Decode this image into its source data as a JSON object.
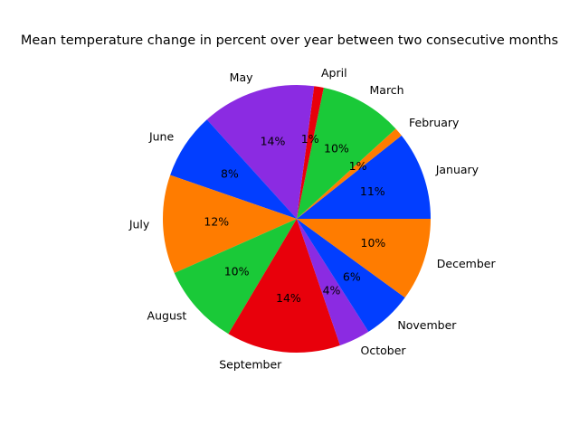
{
  "chart_data": {
    "type": "pie",
    "title": "Mean temperature change in percent over year between two consecutive months",
    "categories": [
      "January",
      "February",
      "March",
      "April",
      "May",
      "June",
      "July",
      "August",
      "September",
      "October",
      "November",
      "December"
    ],
    "values": [
      11.1,
      1.1,
      10.4,
      1.2,
      14.3,
      8.3,
      12.4,
      10.2,
      14.3,
      3.9,
      6.2,
      10.4
    ],
    "percent_labels": [
      "11%",
      "1%",
      "10%",
      "1%",
      "14%",
      "8%",
      "12%",
      "10%",
      "14%",
      "4%",
      "6%",
      "10%"
    ],
    "colors": [
      "#023eff",
      "#ff7c00",
      "#1ac938",
      "#e8000b",
      "#8b2be2",
      "#023eff",
      "#ff7c00",
      "#1ac938",
      "#e8000b",
      "#8b2be2",
      "#023eff",
      "#ff7c00"
    ],
    "start_angle_deg": 0,
    "direction": "counterclockwise"
  }
}
